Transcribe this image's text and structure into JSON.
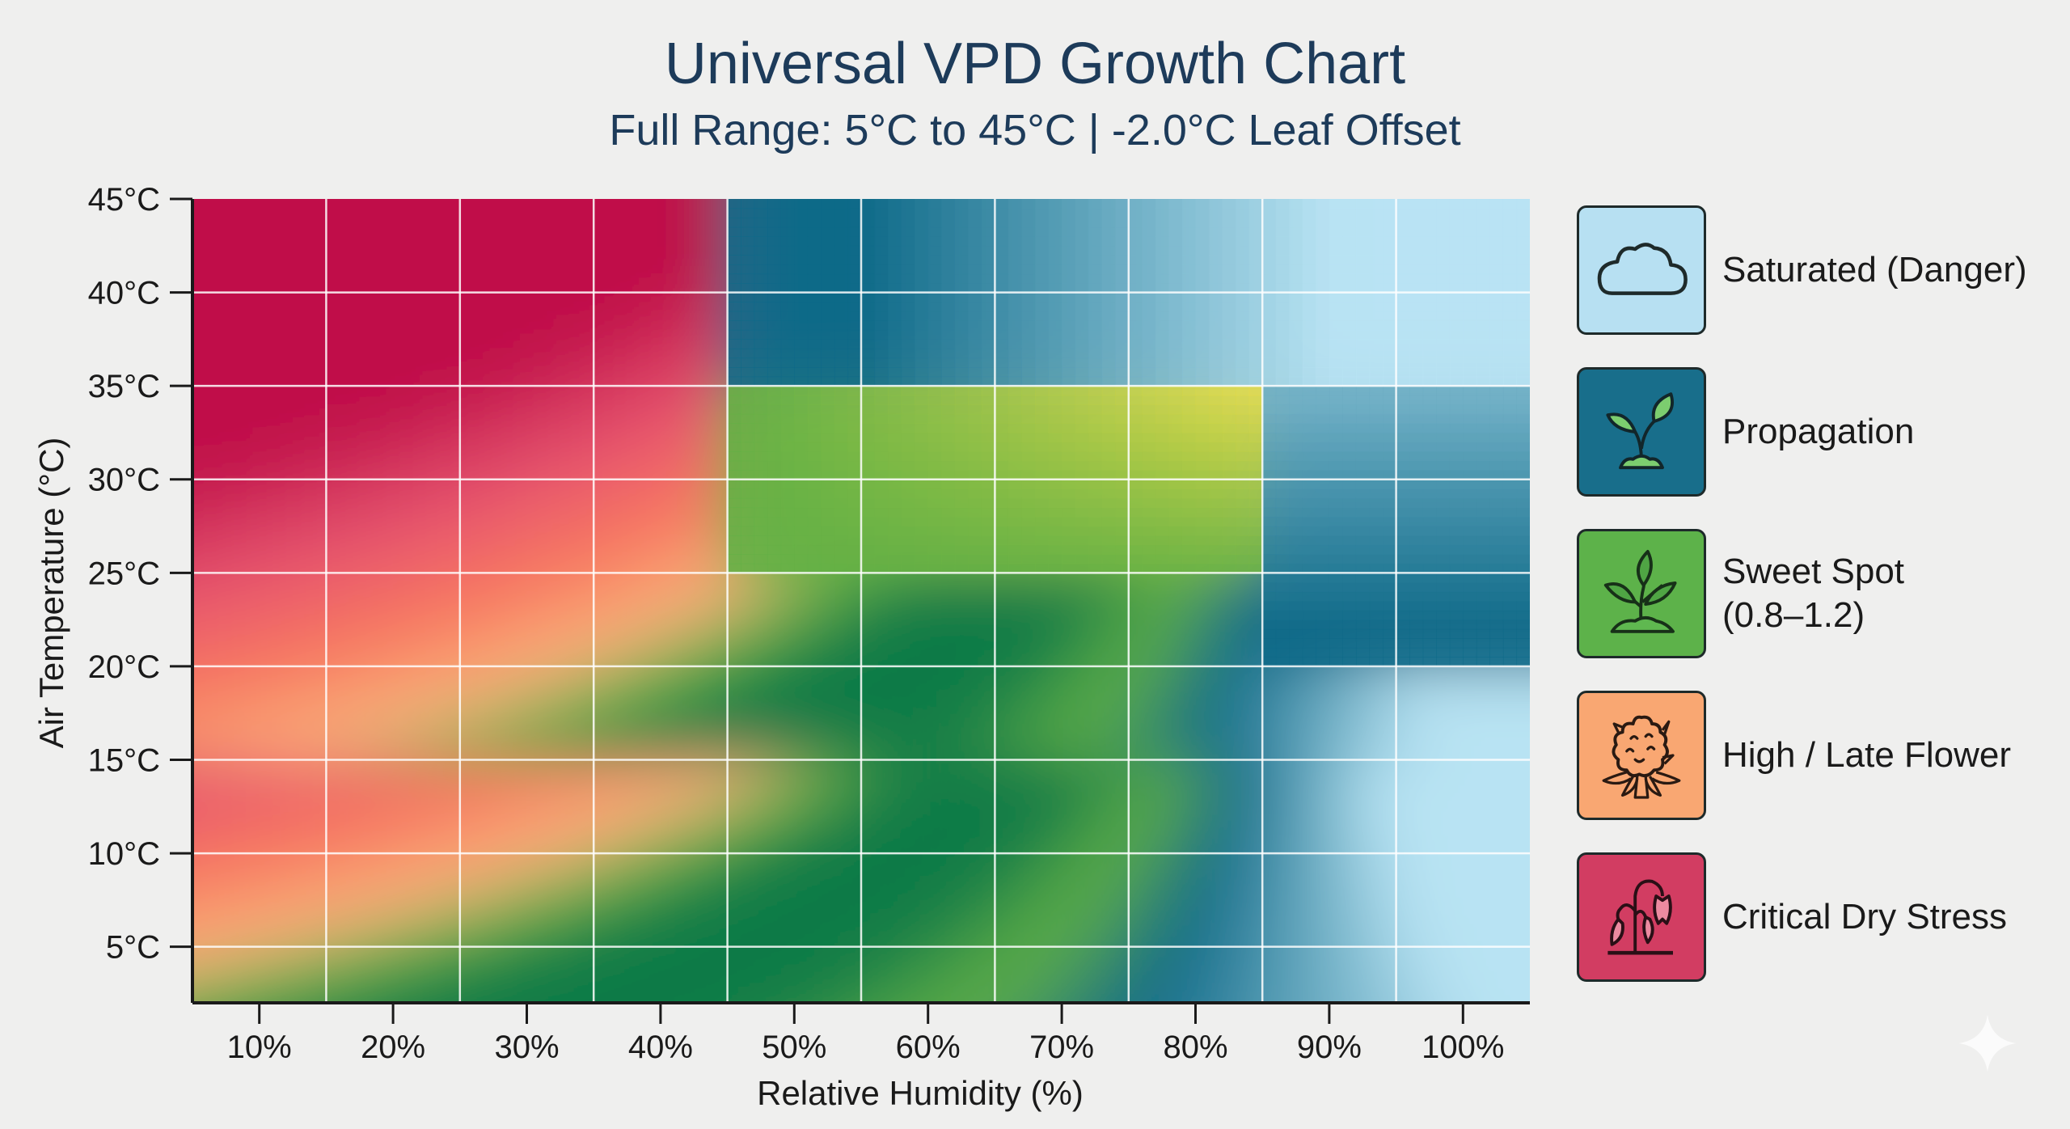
{
  "chart_data": {
    "type": "heatmap",
    "title": "Universal VPD Growth Chart",
    "subtitle": "Full Range: 5°C to 45°C | -2.0°C Leaf Offset",
    "xlabel": "Relative Humidity (%)",
    "ylabel": "Air Temperature (°C)",
    "x_ticks": [
      10,
      20,
      30,
      40,
      50,
      60,
      70,
      80,
      90,
      100
    ],
    "x_tick_labels": [
      "10%",
      "20%",
      "30%",
      "40%",
      "50%",
      "60%",
      "70%",
      "80%",
      "90%",
      "100%"
    ],
    "y_ticks": [
      45,
      40,
      35,
      30,
      25,
      20,
      15,
      10,
      5
    ],
    "y_tick_labels": [
      "45°C",
      "40°C",
      "35°C",
      "30°C",
      "25°C",
      "20°C",
      "15°C",
      "10°C",
      "5°C"
    ],
    "xlim": [
      5,
      105
    ],
    "ylim": [
      2,
      45
    ],
    "grid": true,
    "leaf_offset_c": -2.0,
    "legend_position": "right",
    "zones": [
      {
        "key": "saturated",
        "label": "Saturated (Danger)",
        "color": "#b5dff0",
        "icon": "cloud-icon"
      },
      {
        "key": "propagation",
        "label": "Propagation",
        "color": "#1a6f8c",
        "icon": "seedling-icon"
      },
      {
        "key": "sweet",
        "label": "Sweet Spot\n(0.8–1.2)",
        "color": "#5cb04a",
        "icon": "plant-icon"
      },
      {
        "key": "high",
        "label": "High / Late Flower",
        "color": "#f9a36f",
        "icon": "flower-bud-icon"
      },
      {
        "key": "critical",
        "label": "Critical Dry Stress",
        "color": "#d33f63",
        "icon": "wilted-plant-icon"
      }
    ],
    "colors": {
      "critical": "#c0104a",
      "critical_soft": "#e85770",
      "high": "#f7765f",
      "high_soft": "#fbb47c",
      "sweet": "#0f7a47",
      "sweet_light": "#62b045",
      "sweet_yellow": "#e9dd47",
      "propagation": "#0e6a88",
      "saturated": "#b8e3f3",
      "grid": "#ffffff",
      "axis": "#1a1a1a"
    }
  }
}
